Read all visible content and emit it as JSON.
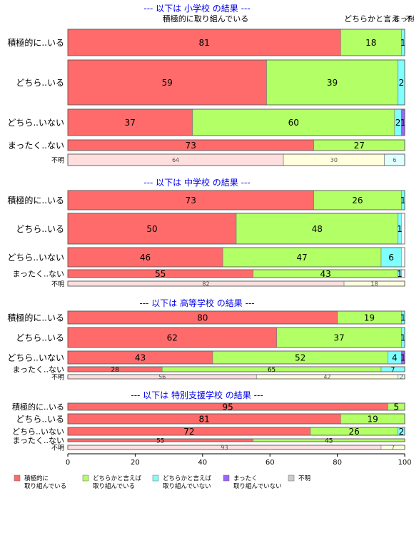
{
  "chart_data": {
    "type": "bar",
    "orientation": "horizontal",
    "stacked": true,
    "normalized": true,
    "colors": {
      "積極的に取り組んでいる": "#FF6B6B",
      "どちらかと言えば取り組んでいる": "#B3FF66",
      "どちらかと言えば取り組んでいない": "#80FFFF",
      "まったく取り組んでいない": "#9966FF",
      "不明": "#CCCCCC"
    },
    "xlim": [
      0,
      100
    ],
    "xticks": [
      "0",
      "20",
      "40",
      "60",
      "80",
      "100"
    ],
    "header_labels": [
      "積極的に取り組んでいる",
      "どちらかと言え",
      "まったく",
      "不明"
    ],
    "categories": [
      "積極的に..いる",
      "どちら..いる",
      "どちら..いない",
      "まったく..ない",
      "不明"
    ],
    "legend": [
      {
        "key": "積極的に取り組んでいる",
        "lines": [
          "積極的に",
          "取り組んでいる"
        ]
      },
      {
        "key": "どちらかと言えば取り組んでいる",
        "lines": [
          "どちらかと言えば",
          "取り組んでいる"
        ]
      },
      {
        "key": "どちらかと言えば取り組んでいない",
        "lines": [
          "どちらかと言えば",
          "取り組んでいない"
        ]
      },
      {
        "key": "まったく取り組んでいない",
        "lines": [
          "まったく",
          "取り組んでいない"
        ]
      },
      {
        "key": "不明",
        "lines": [
          "不明"
        ]
      }
    ],
    "legend_position": "bottom",
    "panels": [
      {
        "title": "--- 以下は 小学校 の結果 ---",
        "rows": [
          {
            "values": [
              81,
              18,
              1,
              0,
              0
            ],
            "labels": [
              "81",
              "18",
              "1",
              "",
              ""
            ]
          },
          {
            "values": [
              59,
              39,
              2,
              0,
              0
            ],
            "labels": [
              "59",
              "39",
              "2",
              "",
              ""
            ]
          },
          {
            "values": [
              37,
              60,
              2,
              1,
              0
            ],
            "labels": [
              "37",
              "60",
              "2",
              "1",
              ""
            ]
          },
          {
            "values": [
              73,
              27,
              0,
              0,
              0
            ],
            "labels": [
              "73",
              "27",
              "",
              "",
              ""
            ]
          },
          {
            "values": [
              64,
              30,
              6,
              0,
              0
            ],
            "labels": [
              "64",
              "30",
              "6",
              "",
              ""
            ]
          }
        ]
      },
      {
        "title": "--- 以下は 中学校 の結果 ---",
        "rows": [
          {
            "values": [
              73,
              26,
              1,
              0,
              0
            ],
            "labels": [
              "73",
              "26",
              "1",
              "",
              ""
            ]
          },
          {
            "values": [
              50,
              48,
              1,
              0,
              0
            ],
            "labels": [
              "50",
              "48",
              "1",
              "",
              ""
            ]
          },
          {
            "values": [
              46,
              47,
              6,
              0,
              0
            ],
            "labels": [
              "46",
              "47",
              "6",
              "",
              ""
            ]
          },
          {
            "values": [
              55,
              43,
              1,
              0,
              0
            ],
            "labels": [
              "55",
              "43",
              "1",
              "",
              ""
            ]
          },
          {
            "values": [
              82,
              18,
              0,
              0,
              0
            ],
            "labels": [
              "82",
              "18",
              "",
              "",
              ""
            ]
          }
        ]
      },
      {
        "title": "--- 以下は 高等学校 の結果 ---",
        "rows": [
          {
            "values": [
              80,
              19,
              1,
              0,
              0
            ],
            "labels": [
              "80",
              "19",
              "1",
              "",
              ""
            ]
          },
          {
            "values": [
              62,
              37,
              1,
              0,
              0
            ],
            "labels": [
              "62",
              "37",
              "1",
              "",
              ""
            ]
          },
          {
            "values": [
              43,
              52,
              4,
              1,
              0
            ],
            "labels": [
              "43",
              "52",
              "4",
              "1",
              ""
            ]
          },
          {
            "values": [
              28,
              65,
              7,
              0,
              0
            ],
            "labels": [
              "28",
              "65",
              "7",
              "",
              ""
            ]
          },
          {
            "values": [
              56,
              42,
              2,
              0,
              0
            ],
            "labels": [
              "56",
              "42",
              "2",
              "",
              ""
            ]
          }
        ]
      },
      {
        "title": "--- 以下は 特別支援学校 の結果 ---",
        "rows": [
          {
            "values": [
              95,
              5,
              0,
              0,
              0
            ],
            "labels": [
              "95",
              "5",
              "",
              "",
              ""
            ]
          },
          {
            "values": [
              81,
              19,
              0,
              0,
              0
            ],
            "labels": [
              "81",
              "19",
              "",
              "",
              ""
            ]
          },
          {
            "values": [
              72,
              26,
              2,
              0,
              0
            ],
            "labels": [
              "72",
              "26",
              "2",
              "",
              ""
            ]
          },
          {
            "values": [
              55,
              45,
              0,
              0,
              0
            ],
            "labels": [
              "55",
              "45",
              "",
              "",
              ""
            ]
          },
          {
            "values": [
              93,
              7,
              0,
              0,
              0
            ],
            "labels": [
              "93",
              "7",
              "",
              "",
              ""
            ]
          }
        ]
      }
    ]
  }
}
